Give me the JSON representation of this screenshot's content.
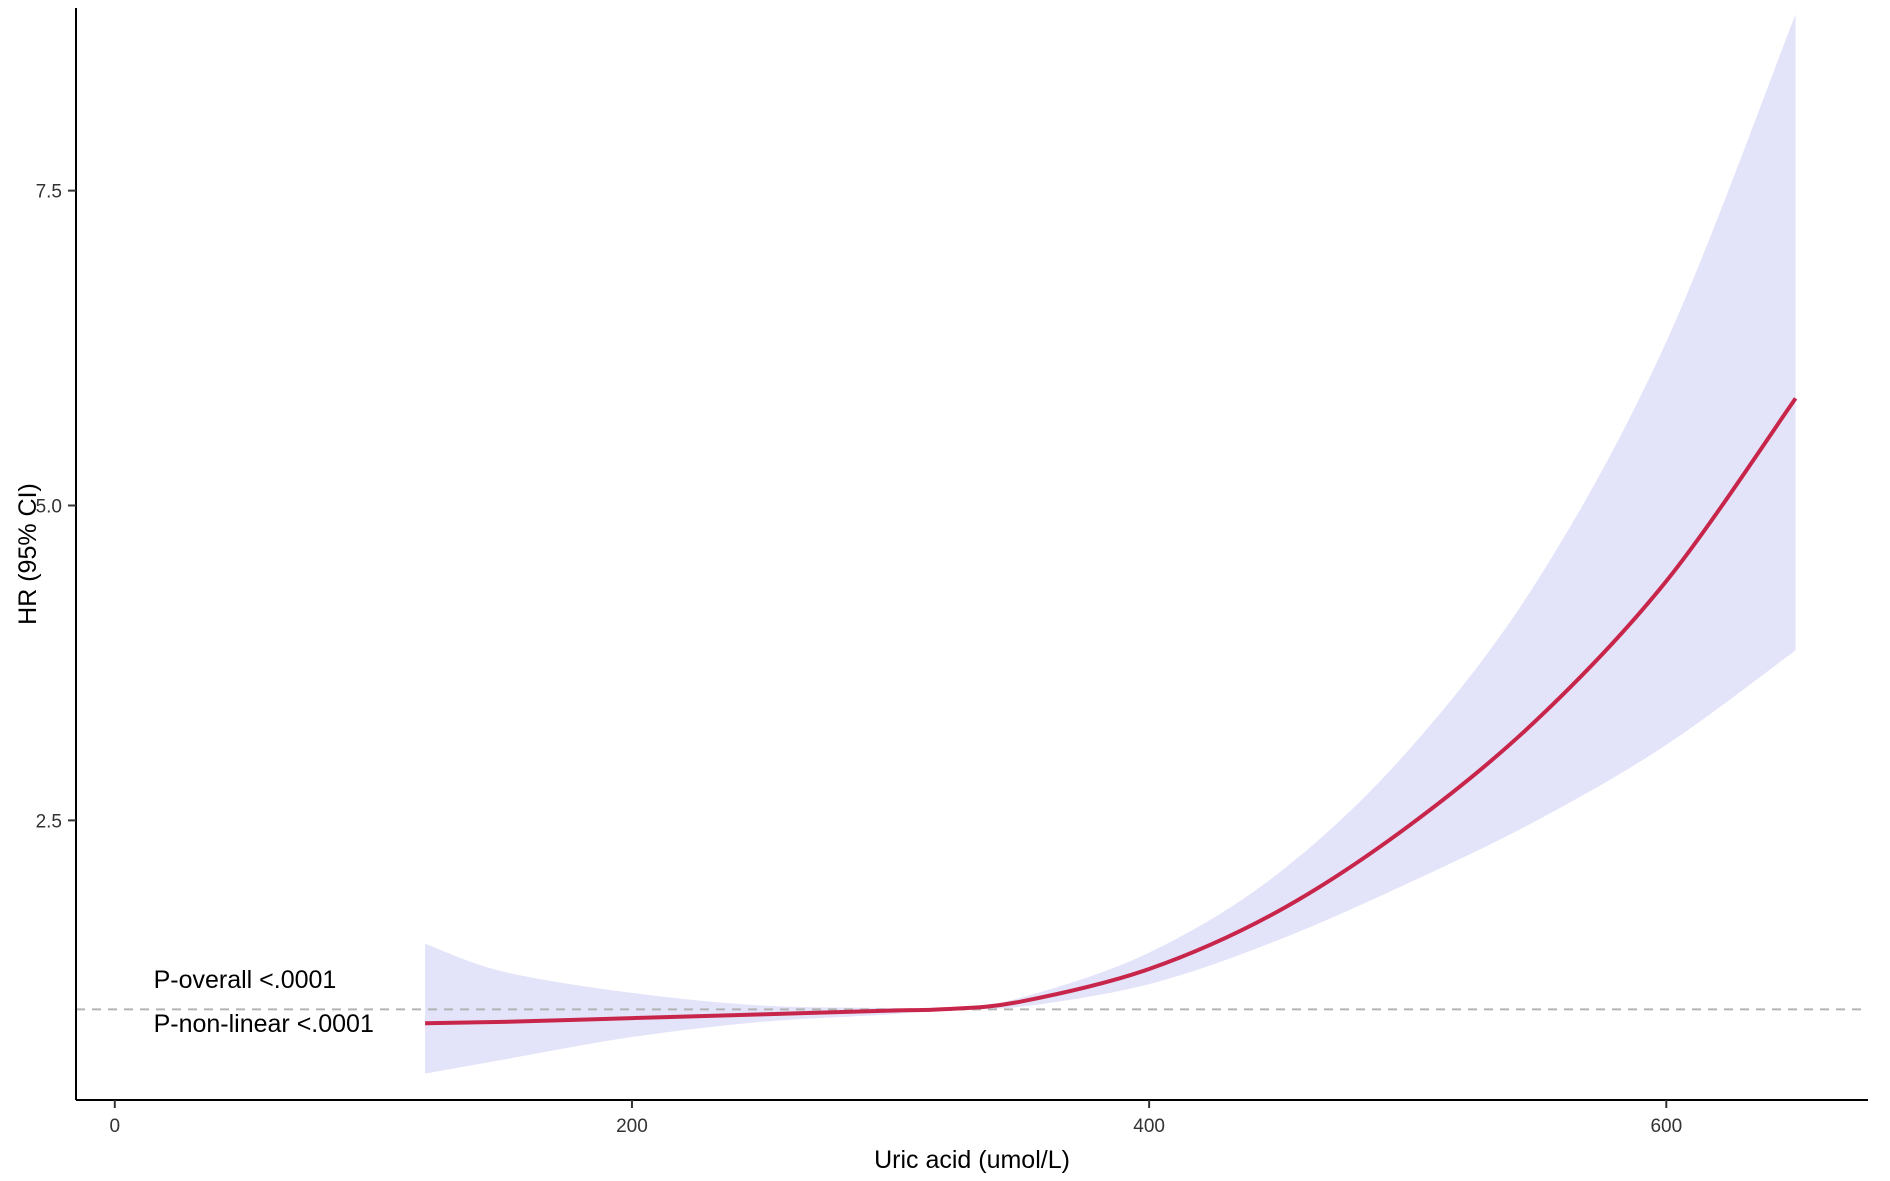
{
  "chart_data": {
    "type": "line",
    "title": "",
    "xlabel": "Uric acid (umol/L)",
    "ylabel": "HR (95% CI)",
    "xlim": [
      -15,
      678
    ],
    "ylim": [
      0.28,
      8.95
    ],
    "x_ticks": [
      {
        "value": 0,
        "label": "0"
      },
      {
        "value": 200,
        "label": "200"
      },
      {
        "value": 400,
        "label": "400"
      },
      {
        "value": 600,
        "label": "600"
      }
    ],
    "y_ticks": [
      {
        "value": 2.5,
        "label": "2.5"
      },
      {
        "value": 5.0,
        "label": "5.0"
      },
      {
        "value": 7.5,
        "label": "7.5"
      }
    ],
    "reference_line": {
      "y": 1.0,
      "style": "dashed",
      "color": "#b3b3b3"
    },
    "grid": false,
    "series": [
      {
        "color": "#c8254a",
        "band_color": "#e3e3fa",
        "x": [
          120,
          150,
          200,
          250,
          300,
          320,
          350,
          400,
          450,
          500,
          550,
          600,
          650
        ],
        "y": [
          0.89,
          0.9,
          0.93,
          0.96,
          0.99,
          1.0,
          1.06,
          1.32,
          1.78,
          2.45,
          3.3,
          4.4,
          5.85
        ],
        "lower": [
          0.49,
          0.6,
          0.78,
          0.9,
          0.96,
          1.0,
          1.02,
          1.2,
          1.55,
          2.0,
          2.5,
          3.1,
          3.85
        ],
        "upper": [
          1.52,
          1.3,
          1.13,
          1.03,
          1.01,
          1.0,
          1.09,
          1.45,
          2.08,
          3.05,
          4.4,
          6.3,
          8.9
        ]
      }
    ],
    "annotations": [
      {
        "text": "P-overall <.0001",
        "x": 15,
        "y": 1.17
      },
      {
        "text": "P-non-linear <.0001",
        "x": 15,
        "y": 0.82
      }
    ]
  }
}
